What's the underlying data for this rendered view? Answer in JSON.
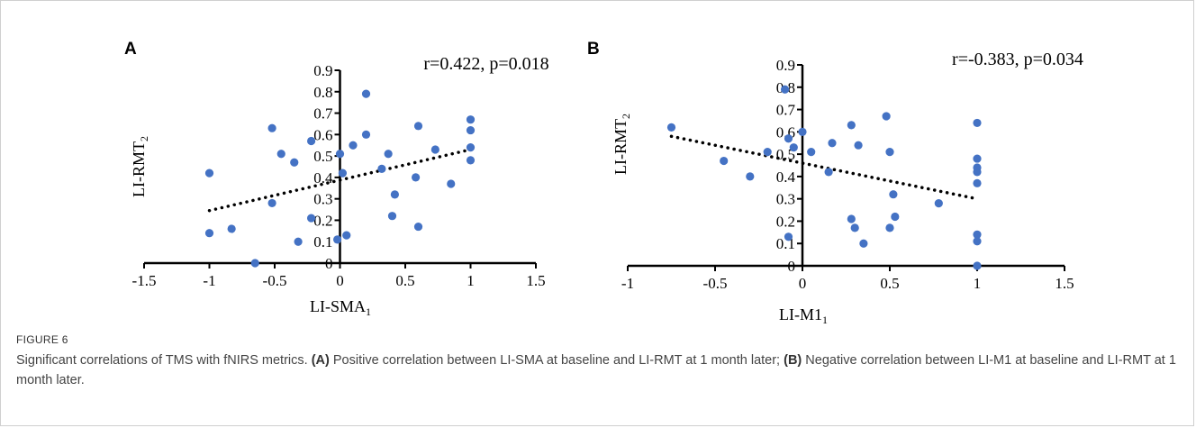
{
  "figure": {
    "label": "FIGURE 6",
    "caption": {
      "intro": "Significant correlations of TMS with fNIRS metrics.",
      "a_tag": "(A)",
      "a_text": "Positive correlation between LI-SMA at baseline and LI-RMT at 1 month later;",
      "b_tag": "(B)",
      "b_text": "Negative correlation between LI-M1 at baseline and LI-RMT at 1 month later."
    }
  },
  "colors": {
    "points": "#4472c4",
    "axes": "#000000",
    "trendline": "#000000"
  },
  "chart_data": [
    {
      "panel": "A",
      "type": "scatter",
      "annotation": "r=0.422, p=0.018",
      "xlabel": {
        "text": "LI-SMA",
        "subscript": "1"
      },
      "ylabel": {
        "text": "LI-RMT",
        "subscript": "2"
      },
      "xlim": [
        -1.5,
        1.5
      ],
      "ylim": [
        0,
        0.9
      ],
      "xticks": [
        "-1.5",
        "-1",
        "-0.5",
        "0",
        "0.5",
        "1",
        "1.5"
      ],
      "yticks": [
        "0",
        "0.1",
        "0.2",
        "0.3",
        "0.4",
        "0.5",
        "0.6",
        "0.7",
        "0.8",
        "0.9"
      ],
      "grid": false,
      "trendline": {
        "style": "dotted",
        "x": [
          -1,
          1
        ],
        "y": [
          0.245,
          0.53
        ]
      },
      "points": [
        [
          -1.0,
          0.42
        ],
        [
          -1.0,
          0.14
        ],
        [
          -0.83,
          0.16
        ],
        [
          -0.65,
          0.0
        ],
        [
          -0.52,
          0.63
        ],
        [
          -0.52,
          0.28
        ],
        [
          -0.45,
          0.51
        ],
        [
          -0.35,
          0.47
        ],
        [
          -0.32,
          0.1
        ],
        [
          -0.22,
          0.57
        ],
        [
          -0.22,
          0.21
        ],
        [
          -0.02,
          0.11
        ],
        [
          0.0,
          0.51
        ],
        [
          0.02,
          0.42
        ],
        [
          0.05,
          0.13
        ],
        [
          0.1,
          0.55
        ],
        [
          0.2,
          0.79
        ],
        [
          0.2,
          0.6
        ],
        [
          0.32,
          0.44
        ],
        [
          0.37,
          0.51
        ],
        [
          0.4,
          0.22
        ],
        [
          0.42,
          0.32
        ],
        [
          0.58,
          0.4
        ],
        [
          0.6,
          0.64
        ],
        [
          0.6,
          0.17
        ],
        [
          0.73,
          0.53
        ],
        [
          0.85,
          0.37
        ],
        [
          1.0,
          0.67
        ],
        [
          1.0,
          0.62
        ],
        [
          1.0,
          0.54
        ],
        [
          1.0,
          0.48
        ]
      ]
    },
    {
      "panel": "B",
      "type": "scatter",
      "annotation": "r=-0.383, p=0.034",
      "xlabel": {
        "text": "LI-M1",
        "subscript": "1"
      },
      "ylabel": {
        "text": "LI-RMT",
        "subscript": "2"
      },
      "xlim": [
        -1,
        1.5
      ],
      "ylim": [
        0,
        0.9
      ],
      "xticks": [
        "-1",
        "-0.5",
        "0",
        "0.5",
        "1",
        "1.5"
      ],
      "yticks": [
        "0",
        "0.1",
        "0.2",
        "0.3",
        "0.4",
        "0.5",
        "0.6",
        "0.7",
        "0.8",
        "0.9"
      ],
      "grid": false,
      "trendline": {
        "style": "dotted",
        "x": [
          -0.75,
          1
        ],
        "y": [
          0.58,
          0.3
        ]
      },
      "points": [
        [
          -0.75,
          0.62
        ],
        [
          -0.45,
          0.47
        ],
        [
          -0.3,
          0.4
        ],
        [
          -0.2,
          0.51
        ],
        [
          -0.1,
          0.79
        ],
        [
          -0.08,
          0.57
        ],
        [
          -0.08,
          0.13
        ],
        [
          -0.05,
          0.53
        ],
        [
          0.0,
          0.6
        ],
        [
          0.05,
          0.51
        ],
        [
          0.15,
          0.42
        ],
        [
          0.17,
          0.55
        ],
        [
          0.28,
          0.63
        ],
        [
          0.28,
          0.21
        ],
        [
          0.3,
          0.17
        ],
        [
          0.32,
          0.54
        ],
        [
          0.35,
          0.1
        ],
        [
          0.48,
          0.67
        ],
        [
          0.5,
          0.51
        ],
        [
          0.5,
          0.17
        ],
        [
          0.52,
          0.32
        ],
        [
          0.53,
          0.22
        ],
        [
          0.78,
          0.28
        ],
        [
          1.0,
          0.64
        ],
        [
          1.0,
          0.48
        ],
        [
          1.0,
          0.44
        ],
        [
          1.0,
          0.42
        ],
        [
          1.0,
          0.37
        ],
        [
          1.0,
          0.14
        ],
        [
          1.0,
          0.11
        ],
        [
          1.0,
          0.0
        ]
      ]
    }
  ]
}
